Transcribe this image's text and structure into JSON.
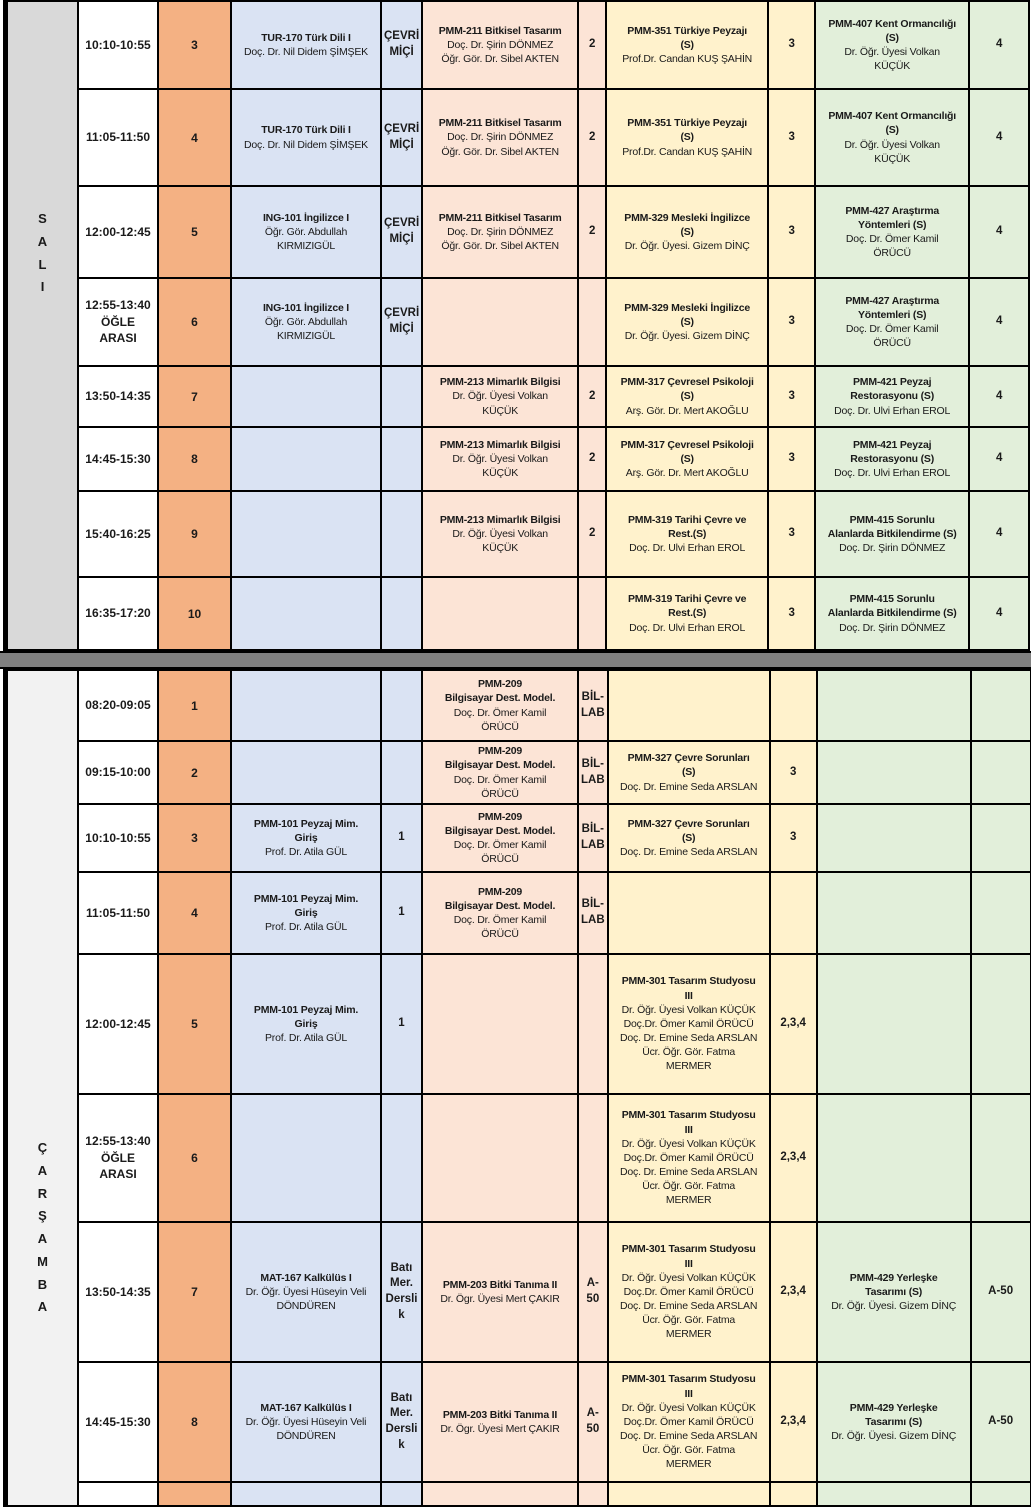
{
  "colors": {
    "period": "#f4b183",
    "year1": "#dae3f3",
    "year2": "#fce4d6",
    "year3": "#fff2cc",
    "year4": "#e2efda",
    "day_sali": "#d9d9d9",
    "day_carsamba": "#f2f2f2",
    "divider": "#808080",
    "border": "#000000",
    "text": "#1a1a1a"
  },
  "days": [
    {
      "name": "SALI",
      "rows": [
        {
          "time": "10:10-10:55",
          "period": "3",
          "y1": {
            "title": "TUR-170 Türk Dili I",
            "people": [
              "Doç. Dr. Nil Didem ŞİMŞEK"
            ]
          },
          "y1r": "ÇEVRİ\nMİÇİ",
          "y2": {
            "title": "PMM-211 Bitkisel Tasarım",
            "people": [
              "Doç. Dr. Şirin DÖNMEZ",
              "Öğr. Gör. Dr. Sibel AKTEN"
            ]
          },
          "y2r": "2",
          "y3": {
            "title": "PMM-351 Türkiye Peyzajı\n(S)",
            "people": [
              "Prof.Dr. Candan KUŞ ŞAHİN"
            ]
          },
          "y3r": "3",
          "y4": {
            "title": "PMM-407 Kent Ormancılığı\n(S)",
            "people": [
              "Dr. Öğr. Üyesi Volkan\nKÜÇÜK"
            ]
          },
          "y4r": "4"
        },
        {
          "time": "11:05-11:50",
          "period": "4",
          "y1": {
            "title": "TUR-170 Türk Dili I",
            "people": [
              "Doç. Dr. Nil Didem ŞİMŞEK"
            ]
          },
          "y1r": "ÇEVRİ\nMİÇİ",
          "y2": {
            "title": "PMM-211 Bitkisel Tasarım",
            "people": [
              "Doç. Dr. Şirin DÖNMEZ",
              "Öğr. Gör. Dr. Sibel AKTEN"
            ]
          },
          "y2r": "2",
          "y3": {
            "title": "PMM-351 Türkiye Peyzajı\n(S)",
            "people": [
              "Prof.Dr. Candan KUŞ ŞAHİN"
            ]
          },
          "y3r": "3",
          "y4": {
            "title": "PMM-407 Kent Ormancılığı\n(S)",
            "people": [
              "Dr. Öğr. Üyesi Volkan\nKÜÇÜK"
            ]
          },
          "y4r": "4"
        },
        {
          "time": "12:00-12:45",
          "period": "5",
          "y1": {
            "title": "ING-101 İngilizce I",
            "people": [
              "Öğr. Gör. Abdullah\nKIRMIZIGÜL"
            ]
          },
          "y1r": "ÇEVRİ\nMİÇİ",
          "y2": {
            "title": "PMM-211 Bitkisel Tasarım",
            "people": [
              "Doç. Dr. Şirin DÖNMEZ",
              "Öğr. Gör. Dr. Sibel AKTEN"
            ]
          },
          "y2r": "2",
          "y3": {
            "title": "PMM-329 Mesleki İngilizce\n(S)",
            "people": [
              "Dr. Öğr. Üyesi. Gizem DİNÇ"
            ]
          },
          "y3r": "3",
          "y4": {
            "title": "PMM-427 Araştırma\nYöntemleri (S)",
            "people": [
              "Doç. Dr. Ömer Kamil\nÖRÜCÜ"
            ]
          },
          "y4r": "4"
        },
        {
          "time": "12:55-13:40\nÖĞLE ARASI",
          "period": "6",
          "y1": {
            "title": "ING-101 İngilizce I",
            "people": [
              "Öğr. Gör. Abdullah\nKIRMIZIGÜL"
            ]
          },
          "y1r": "ÇEVRİ\nMİÇİ",
          "y2": null,
          "y2r": "",
          "y3": {
            "title": "PMM-329 Mesleki İngilizce\n(S)",
            "people": [
              "Dr. Öğr. Üyesi. Gizem DİNÇ"
            ]
          },
          "y3r": "3",
          "y4": {
            "title": "PMM-427 Araştırma\nYöntemleri (S)",
            "people": [
              "Doç. Dr. Ömer Kamil\nÖRÜCÜ"
            ]
          },
          "y4r": "4"
        },
        {
          "time": "13:50-14:35",
          "period": "7",
          "y1": null,
          "y1r": "",
          "y2": {
            "title": "PMM-213 Mimarlık Bilgisi",
            "people": [
              "Dr. Öğr. Üyesi Volkan\nKÜÇÜK"
            ]
          },
          "y2r": "2",
          "y3": {
            "title": "PMM-317 Çevresel Psikoloji\n(S)",
            "people": [
              "Arş. Gör. Dr. Mert AKOĞLU"
            ]
          },
          "y3r": "3",
          "y4": {
            "title": "PMM-421 Peyzaj\nRestorasyonu (S)",
            "people": [
              "Doç. Dr. Ulvi Erhan EROL"
            ]
          },
          "y4r": "4"
        },
        {
          "time": "14:45-15:30",
          "period": "8",
          "y1": null,
          "y1r": "",
          "y2": {
            "title": "PMM-213 Mimarlık Bilgisi",
            "people": [
              "Dr. Öğr. Üyesi Volkan\nKÜÇÜK"
            ]
          },
          "y2r": "2",
          "y3": {
            "title": "PMM-317 Çevresel Psikoloji\n(S)",
            "people": [
              "Arş. Gör. Dr. Mert AKOĞLU"
            ]
          },
          "y3r": "3",
          "y4": {
            "title": "PMM-421 Peyzaj\nRestorasyonu (S)",
            "people": [
              "Doç. Dr. Ulvi Erhan EROL"
            ]
          },
          "y4r": "4"
        },
        {
          "time": "15:40-16:25",
          "period": "9",
          "y1": null,
          "y1r": "",
          "y2": {
            "title": "PMM-213 Mimarlık Bilgisi",
            "people": [
              "Dr. Öğr. Üyesi Volkan\nKÜÇÜK"
            ]
          },
          "y2r": "2",
          "y3": {
            "title": "PMM-319 Tarihi Çevre ve\nRest.(S)",
            "people": [
              "Doç. Dr. Ulvi Erhan EROL"
            ]
          },
          "y3r": "3",
          "y4": {
            "title": "PMM-415 Sorunlu\nAlanlarda Bitkilendirme (S)",
            "people": [
              "Doç. Dr. Şirin DÖNMEZ"
            ]
          },
          "y4r": "4"
        },
        {
          "time": "16:35-17:20",
          "period": "10",
          "y1": null,
          "y1r": "",
          "y2": null,
          "y2r": "",
          "y3": {
            "title": "PMM-319 Tarihi Çevre ve\nRest.(S)",
            "people": [
              "Doç. Dr. Ulvi Erhan EROL"
            ]
          },
          "y3r": "3",
          "y4": {
            "title": "PMM-415 Sorunlu\nAlanlarda Bitkilendirme (S)",
            "people": [
              "Doç. Dr. Şirin DÖNMEZ"
            ]
          },
          "y4r": "4"
        }
      ]
    },
    {
      "name": "ÇARŞAMBA",
      "rows": [
        {
          "time": "08:20-09:05",
          "period": "1",
          "y1": null,
          "y1r": "",
          "y2": {
            "title": "PMM-209\nBilgisayar Dest. Model.",
            "people": [
              "Doç. Dr. Ömer Kamil\nÖRÜCÜ"
            ]
          },
          "y2r": "BİL-\nLAB",
          "y3": null,
          "y3r": "",
          "y4": null,
          "y4r": ""
        },
        {
          "time": "09:15-10:00",
          "period": "2",
          "y1": null,
          "y1r": "",
          "y2": {
            "title": "PMM-209\nBilgisayar Dest. Model.",
            "people": [
              "Doç. Dr. Ömer Kamil\nÖRÜCÜ"
            ]
          },
          "y2r": "BİL-\nLAB",
          "y3": {
            "title": "PMM-327 Çevre Sorunları\n(S)",
            "people": [
              "Doç. Dr. Emine Seda ARSLAN"
            ]
          },
          "y3r": "3",
          "y4": null,
          "y4r": ""
        },
        {
          "time": "10:10-10:55",
          "period": "3",
          "y1": {
            "title": "PMM-101 Peyzaj Mim.\nGiriş",
            "people": [
              "Prof. Dr. Atila GÜL"
            ]
          },
          "y1r": "1",
          "y2": {
            "title": "PMM-209\nBilgisayar Dest. Model.",
            "people": [
              "Doç. Dr. Ömer Kamil\nÖRÜCÜ"
            ]
          },
          "y2r": "BİL-\nLAB",
          "y3": {
            "title": "PMM-327 Çevre Sorunları\n(S)",
            "people": [
              "Doç. Dr. Emine Seda ARSLAN"
            ]
          },
          "y3r": "3",
          "y4": null,
          "y4r": ""
        },
        {
          "time": "11:05-11:50",
          "period": "4",
          "y1": {
            "title": "PMM-101 Peyzaj Mim.\nGiriş",
            "people": [
              "Prof. Dr. Atila GÜL"
            ]
          },
          "y1r": "1",
          "y2": {
            "title": "PMM-209\nBilgisayar Dest. Model.",
            "people": [
              "Doç. Dr. Ömer Kamil\nÖRÜCÜ"
            ]
          },
          "y2r": "BİL-\nLAB",
          "y3": null,
          "y3r": "",
          "y4": null,
          "y4r": ""
        },
        {
          "time": "12:00-12:45",
          "period": "5",
          "y1": {
            "title": "PMM-101 Peyzaj Mim.\nGiriş",
            "people": [
              "Prof. Dr. Atila GÜL"
            ]
          },
          "y1r": "1",
          "y2": null,
          "y2r": "",
          "y3": {
            "title": "PMM-301 Tasarım Studyosu\nIII",
            "people": [
              "Dr. Öğr. Üyesi Volkan KÜÇÜK",
              "Doç.Dr. Ömer Kamil ÖRÜCÜ",
              "Doç. Dr. Emine Seda ARSLAN",
              "Ücr. Öğr. Gör. Fatma\nMERMER"
            ]
          },
          "y3r": "2,3,4",
          "y4": null,
          "y4r": ""
        },
        {
          "time": "12:55-13:40\nÖĞLE ARASI",
          "period": "6",
          "y1": null,
          "y1r": "",
          "y2": null,
          "y2r": "",
          "y3": {
            "title": "PMM-301 Tasarım Studyosu\nIII",
            "people": [
              "Dr. Öğr. Üyesi Volkan KÜÇÜK",
              "Doç.Dr. Ömer Kamil ÖRÜCÜ",
              "Doç. Dr. Emine Seda ARSLAN",
              "Ücr. Öğr. Gör. Fatma\nMERMER"
            ]
          },
          "y3r": "2,3,4",
          "y4": null,
          "y4r": ""
        },
        {
          "time": "13:50-14:35",
          "period": "7",
          "y1": {
            "title": "MAT-167 Kalkülüs I",
            "people": [
              "Dr. Öğr. Üyesi Hüseyin Veli\nDÖNDÜREN"
            ]
          },
          "y1r": "Batı\nMer.\nDersli\nk",
          "y2": {
            "title": "PMM-203 Bitki Tanıma II",
            "people": [
              "Dr. Ögr. Üyesi Mert ÇAKIR"
            ]
          },
          "y2r": "A-\n50",
          "y3": {
            "title": "PMM-301 Tasarım Studyosu\nIII",
            "people": [
              "Dr. Öğr. Üyesi Volkan KÜÇÜK",
              "Doç.Dr. Ömer Kamil ÖRÜCÜ",
              "Doç. Dr. Emine Seda ARSLAN",
              "Ücr. Öğr. Gör. Fatma\nMERMER"
            ]
          },
          "y3r": "2,3,4",
          "y4": {
            "title": "PMM-429 Yerleşke\nTasarımı (S)",
            "people": [
              "Dr. Öğr. Üyesi. Gizem DİNÇ"
            ]
          },
          "y4r": "A-50"
        },
        {
          "time": "14:45-15:30",
          "period": "8",
          "y1": {
            "title": "MAT-167 Kalkülüs I",
            "people": [
              "Dr. Öğr. Üyesi Hüseyin Veli\nDÖNDÜREN"
            ]
          },
          "y1r": "Batı\nMer.\nDersli\nk",
          "y2": {
            "title": "PMM-203 Bitki Tanıma II",
            "people": [
              "Dr. Ögr. Üyesi Mert ÇAKIR"
            ]
          },
          "y2r": "A-\n50",
          "y3": {
            "title": "PMM-301 Tasarım Studyosu\nIII",
            "people": [
              "Dr. Öğr. Üyesi Volkan KÜÇÜK",
              "Doç.Dr. Ömer Kamil ÖRÜCÜ",
              "Doç. Dr. Emine Seda ARSLAN",
              "Ücr. Öğr. Gör. Fatma\nMERMER"
            ]
          },
          "y3r": "2,3,4",
          "y4": {
            "title": "PMM-429 Yerleşke\nTasarımı (S)",
            "people": [
              "Dr. Öğr. Üyesi. Gizem DİNÇ"
            ]
          },
          "y4r": "A-50"
        }
      ]
    }
  ]
}
